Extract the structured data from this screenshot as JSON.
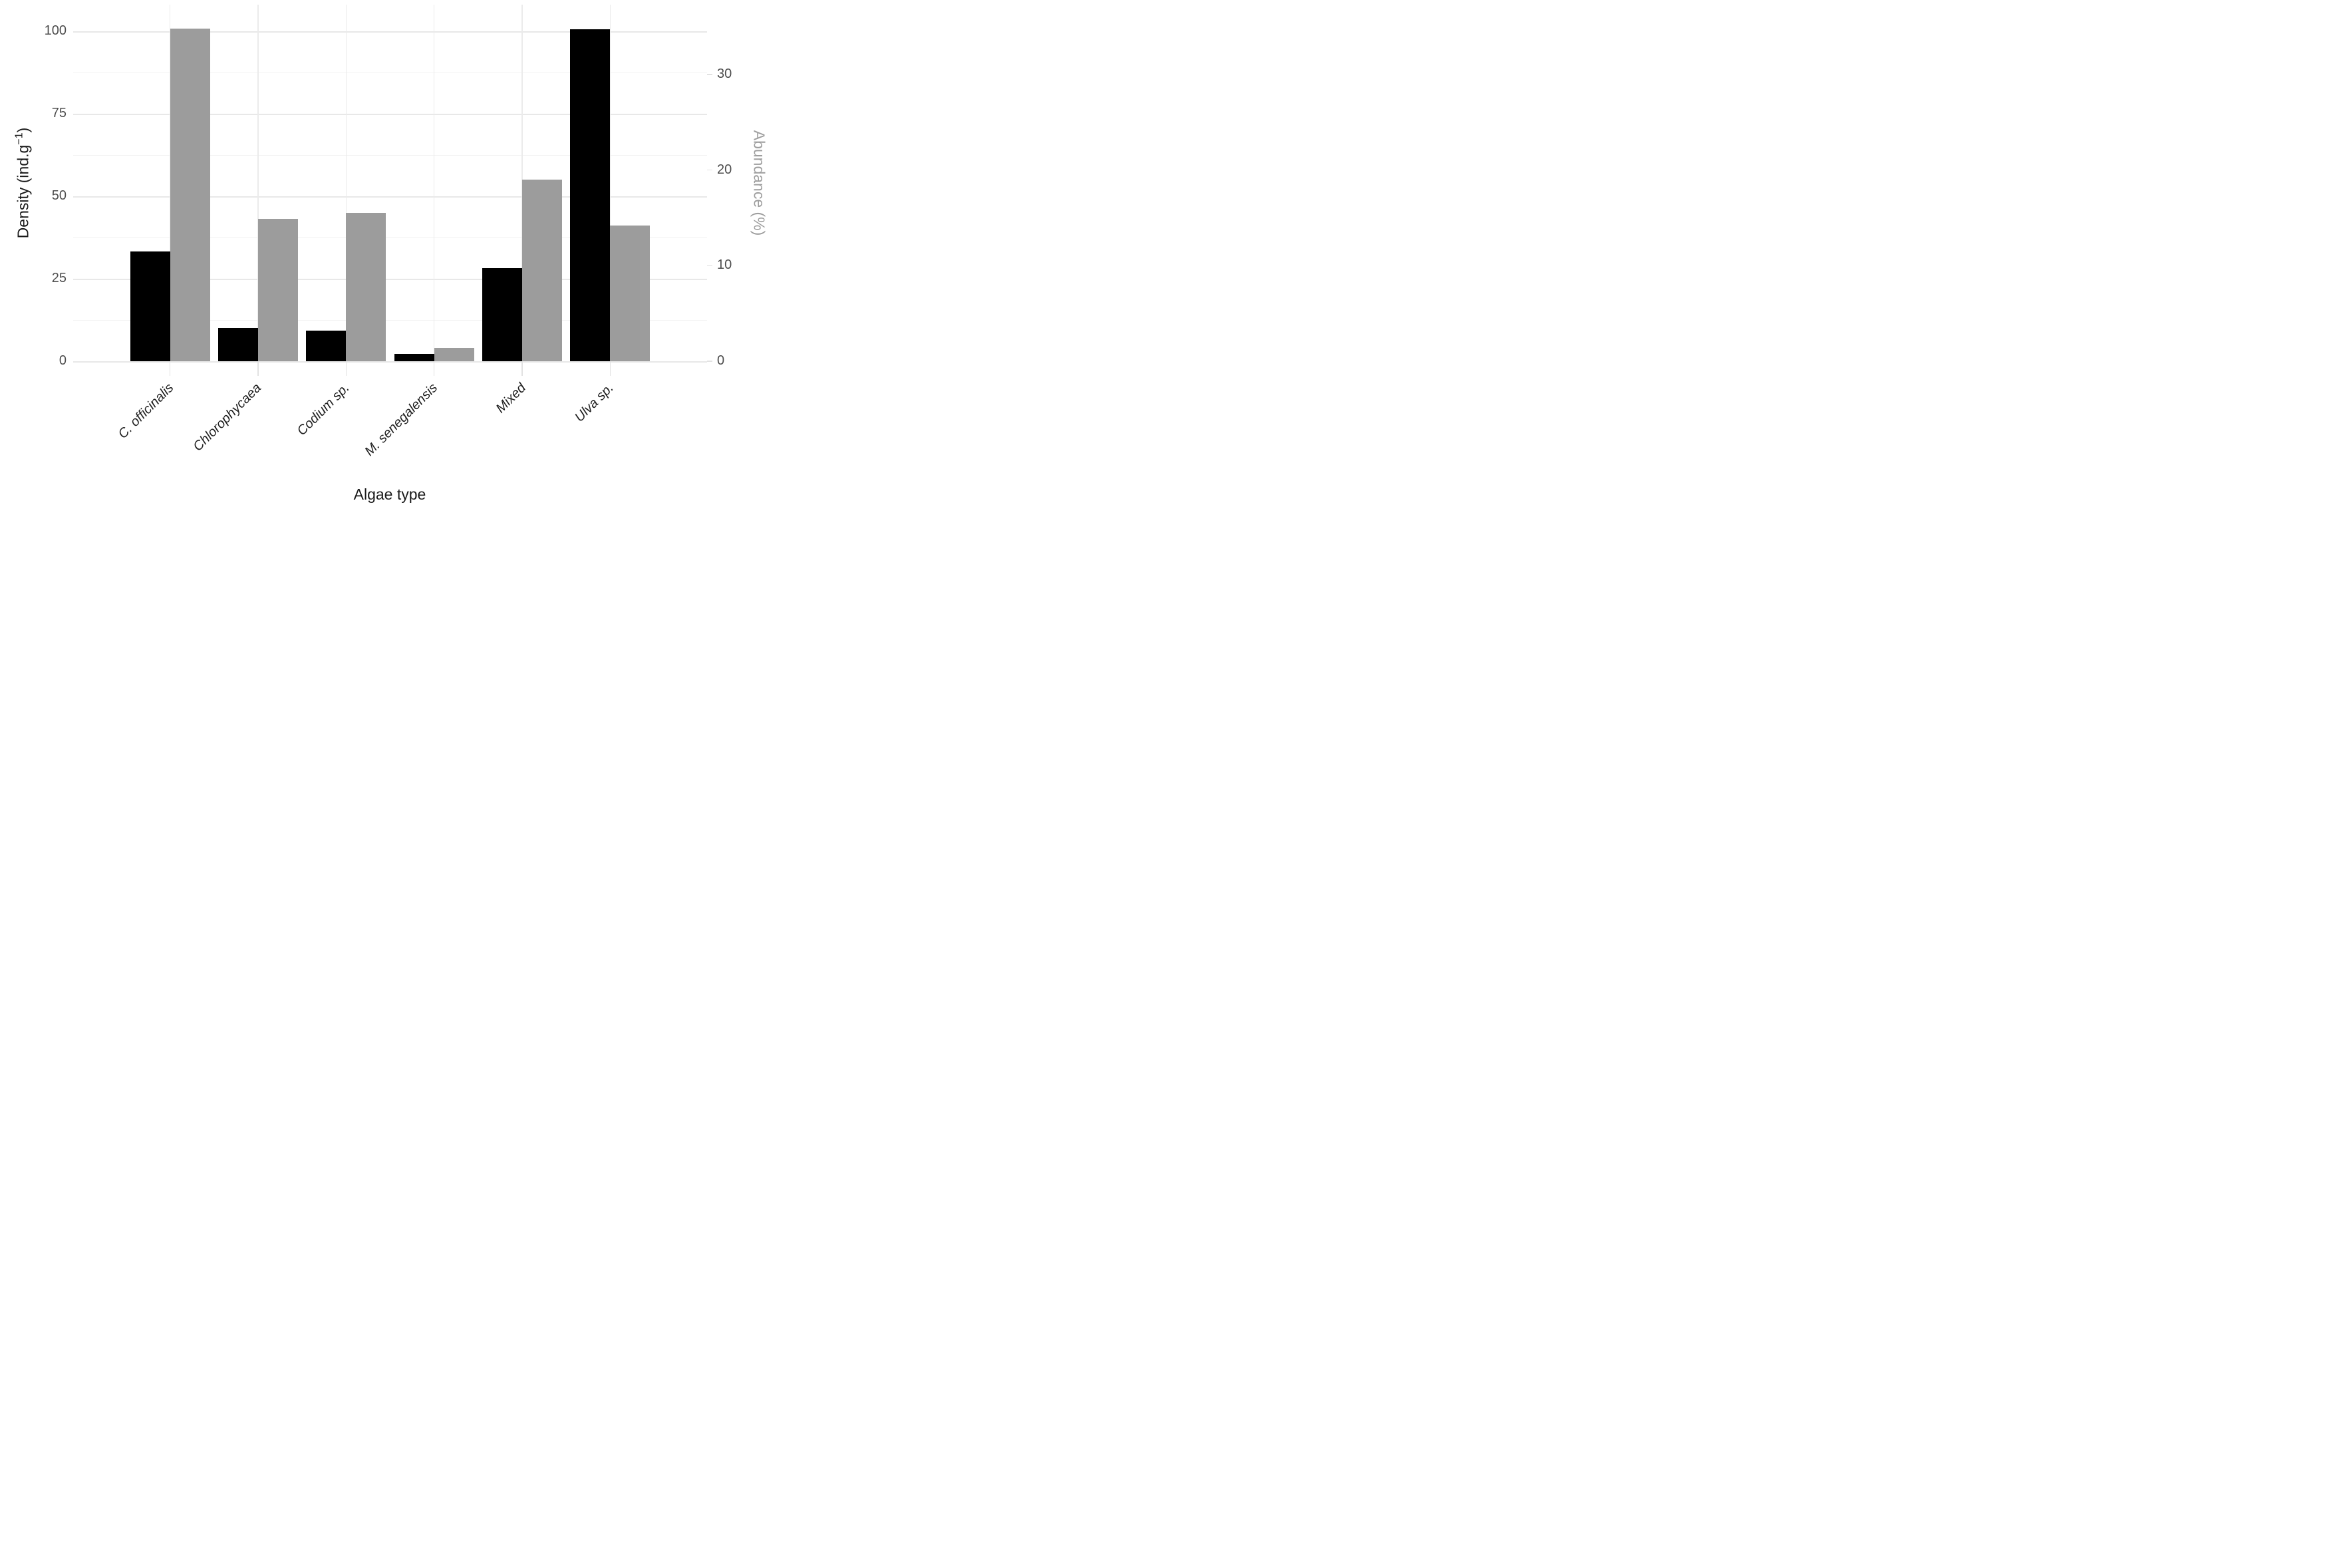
{
  "chart_data": {
    "type": "bar",
    "categories": [
      "C. officinalis",
      "Chlorophycaea",
      "Codium sp.",
      "M. senegalensis",
      "Mixed",
      "Ulva sp."
    ],
    "series": [
      {
        "name": "Density",
        "axis": "left",
        "color": "#000000",
        "values": [
          33.3,
          10.0,
          9.2,
          2.2,
          28.3,
          100.7
        ]
      },
      {
        "name": "Abundance",
        "axis": "right",
        "color": "#9c9c9c",
        "values": [
          34.8,
          14.9,
          15.5,
          1.4,
          19.0,
          14.2
        ]
      }
    ],
    "title": "",
    "xlabel": "Algae type",
    "ylabel_left": "Density (ind.g−1)",
    "ylabel_right": "Abundance (%)",
    "y_left": {
      "ticks": [
        0,
        25,
        50,
        75,
        100
      ],
      "minor_ticks": [
        12.5,
        37.5,
        62.5,
        87.5
      ],
      "ylim": [
        0,
        108.1
      ]
    },
    "y_right": {
      "ticks": [
        0,
        10,
        20,
        30
      ],
      "left_units_per_percent": 2.897
    },
    "grid": "major+minor horizontal, vertical at category centers",
    "legend_position": "none",
    "bar_layout": "dodged pair per category, black left of center, gray right of center"
  },
  "labels": {
    "x_title": "Algae type",
    "y_left_title_base": "Density (ind.g",
    "y_left_title_sup": "−1",
    "y_left_title_close": ")",
    "y_right_title": "Abundance (%)"
  },
  "colors": {
    "background": "#ffffff",
    "bar_black": "#000000",
    "bar_gray": "#9c9c9c",
    "grid_major": "#e8e8e8",
    "grid_minor": "#f2f2f2",
    "grid_vertical": "#ebebeb",
    "tick_label": "#4d4d4d",
    "axis_title_left": "#1a1a1a",
    "axis_title_right": "#9e9e9e",
    "category_label": "#1f1f1f"
  }
}
